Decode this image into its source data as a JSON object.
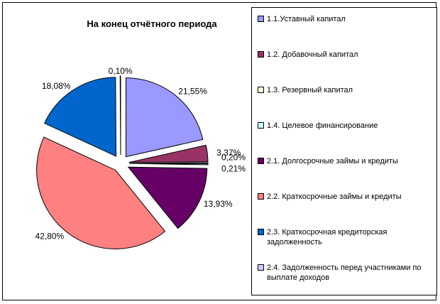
{
  "chart_data": {
    "type": "pie",
    "title": "На конец отчётного периода",
    "categories": [
      "1.1.Уставный капитал",
      "1.2. Добавочный капитал",
      "1.3. Резервный капитал",
      "1.4. Целевое финансирование",
      "2.1. Долгосрочные займы и кредиты",
      "2.2. Краткосрочные займы и кредиты",
      "2.3. Краткосрочная кредиторская задолженность",
      "2.4. Задолженность перед участниками по выплате доходов"
    ],
    "values": [
      21.55,
      3.37,
      0.2,
      0.21,
      13.93,
      42.8,
      18.08,
      0.1
    ],
    "data_labels": [
      "21,55%",
      "3,37%",
      "0,20%",
      "0,21%",
      "13,93%",
      "42,80%",
      "18,08%",
      "0,10%"
    ],
    "colors": [
      "#9999ff",
      "#993366",
      "#ffffcc",
      "#ccffff",
      "#660066",
      "#ff8080",
      "#0066cc",
      "#ccccff"
    ],
    "exploded": true,
    "legend_position": "right"
  }
}
